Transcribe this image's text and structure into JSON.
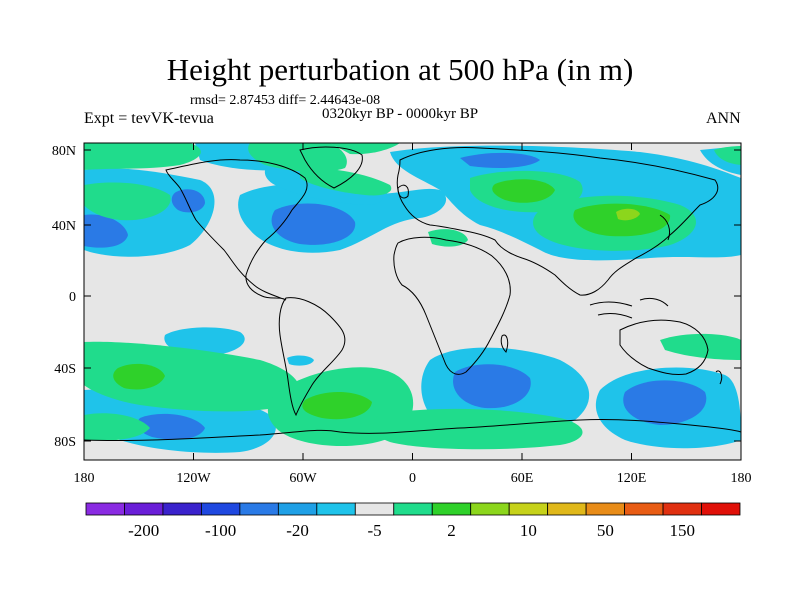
{
  "header": {
    "title": "Height perturbation at 500 hPa (in m)",
    "stats": "rmsd= 2.87453 diff= 2.44643e-08",
    "experiment": "Expt = tevVK-tevua",
    "period": "0320kyr BP - 0000kyr BP",
    "season": "ANN"
  },
  "axes": {
    "lat_labels": [
      "80N",
      "40N",
      "0",
      "40S",
      "80S"
    ],
    "lon_labels": [
      "180",
      "120W",
      "60W",
      "0",
      "60E",
      "120E",
      "180"
    ]
  },
  "colorbar": {
    "colors": [
      "#8a2be2",
      "#6a1ed8",
      "#3a22cc",
      "#1f48e0",
      "#2a7ae6",
      "#1fa0e6",
      "#1fc3ea",
      "#e6e6e6",
      "#20dc8c",
      "#2fd12a",
      "#8cd61c",
      "#c6d21a",
      "#e0b81a",
      "#e88c18",
      "#e85c14",
      "#e03010",
      "#e01008"
    ],
    "labels": [
      "-200",
      "-100",
      "-20",
      "-5",
      "2",
      "10",
      "50",
      "150"
    ]
  },
  "palette": {
    "background": "#e6e6e6",
    "light_blue": "#1fc3ea",
    "mid_blue": "#2a7ae6",
    "green": "#20dc8c",
    "bright_green": "#2fd12a",
    "yellow_green": "#8cd61c"
  }
}
